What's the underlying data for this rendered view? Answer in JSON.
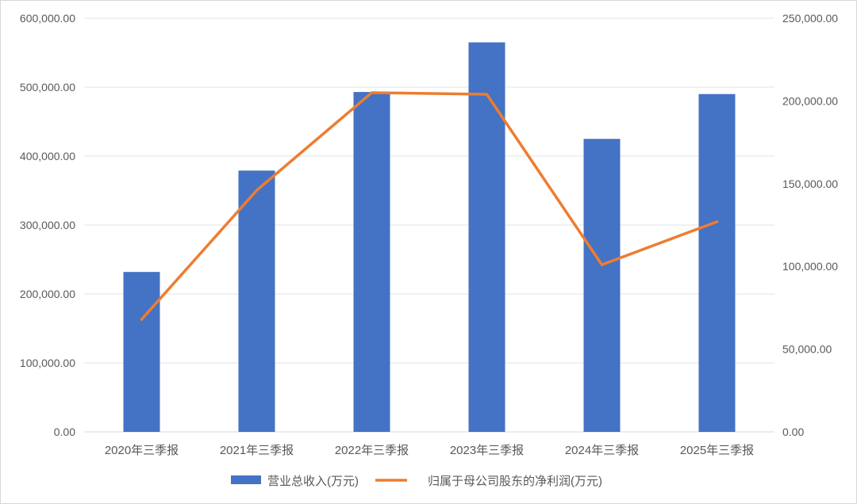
{
  "chart_data": {
    "type": "bar",
    "categories": [
      "2020年三季报",
      "2021年三季报",
      "2022年三季报",
      "2023年三季报",
      "2024年三季报",
      "2025年三季报"
    ],
    "series": [
      {
        "name": "营业总收入(万元)",
        "type": "bar",
        "axis": "left",
        "color": "#4472C4",
        "values": [
          232000,
          379000,
          493000,
          565000,
          425000,
          490000
        ]
      },
      {
        "name": "归属于母公司股东的净利润(万元)",
        "type": "line",
        "axis": "right",
        "color": "#ED7D31",
        "values": [
          68000,
          146000,
          205000,
          204000,
          101000,
          127000
        ]
      }
    ],
    "y_left": {
      "ylim": [
        0,
        600000
      ],
      "ticks": [
        "0.00",
        "100,000.00",
        "200,000.00",
        "300,000.00",
        "400,000.00",
        "500,000.00",
        "600,000.00"
      ]
    },
    "y_right": {
      "ylim": [
        0,
        250000
      ],
      "ticks": [
        "0.00",
        "50,000.00",
        "100,000.00",
        "150,000.00",
        "200,000.00",
        "250,000.00"
      ]
    },
    "grid": true,
    "legend": "bottom"
  }
}
